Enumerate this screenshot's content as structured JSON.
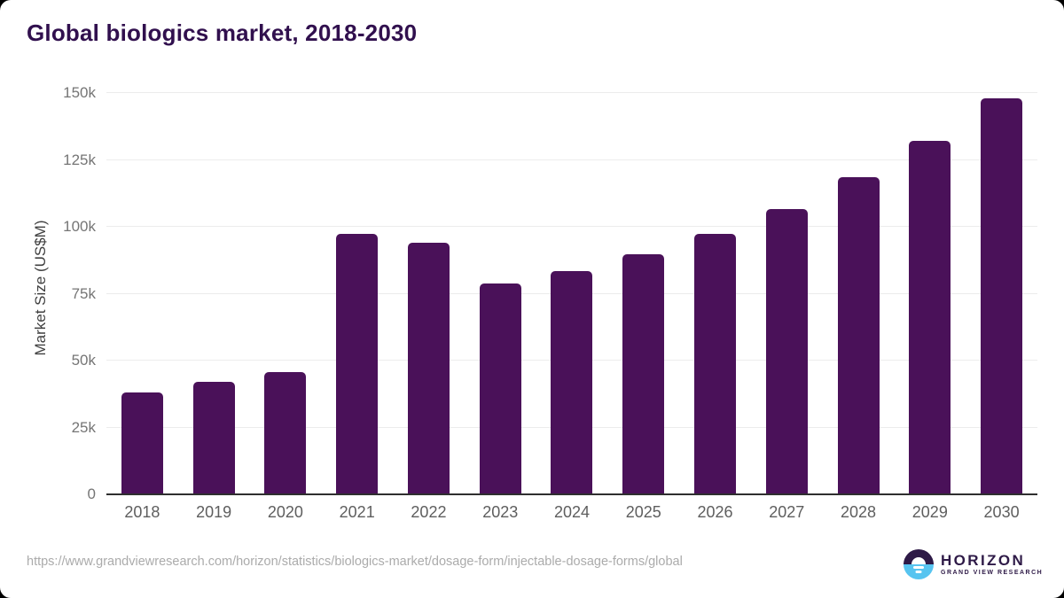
{
  "title": "Global biologics market, 2018-2030",
  "footer": {
    "source_url": "https://www.grandviewresearch.com/horizon/statistics/biologics-market/dosage-form/injectable-dosage-forms/global"
  },
  "logo": {
    "name": "HORIZON",
    "subtitle": "GRAND VIEW RESEARCH",
    "icon": "horizon-sun-over-water-icon"
  },
  "colors": {
    "bar": "#4a1159",
    "title_text": "#31104e",
    "gridline": "#ececec",
    "axis_line": "#2f2f2f",
    "y_tick_text": "#757575",
    "x_tick_text": "#5e5e5e",
    "url_text": "#ababab",
    "logo_purple": "#2e1a47",
    "logo_blue": "#57c4f0",
    "background": "#ffffff"
  },
  "chart_data": {
    "type": "bar",
    "title": "Global biologics market, 2018-2030",
    "xlabel": "",
    "ylabel": "Market Size (US$M)",
    "categories": [
      "2018",
      "2019",
      "2020",
      "2021",
      "2022",
      "2023",
      "2024",
      "2025",
      "2026",
      "2027",
      "2028",
      "2029",
      "2030"
    ],
    "values": [
      38100,
      42200,
      45600,
      97400,
      94000,
      78900,
      83300,
      89700,
      97400,
      106700,
      118600,
      132100,
      147900
    ],
    "ylim": [
      0,
      150000
    ],
    "yticks": [
      {
        "value": 0,
        "label": "0"
      },
      {
        "value": 25000,
        "label": "25k"
      },
      {
        "value": 50000,
        "label": "50k"
      },
      {
        "value": 75000,
        "label": "75k"
      },
      {
        "value": 100000,
        "label": "100k"
      },
      {
        "value": 125000,
        "label": "125k"
      },
      {
        "value": 150000,
        "label": "150k"
      }
    ],
    "grid": true,
    "legend": false,
    "bar_color": "#4a1159"
  }
}
